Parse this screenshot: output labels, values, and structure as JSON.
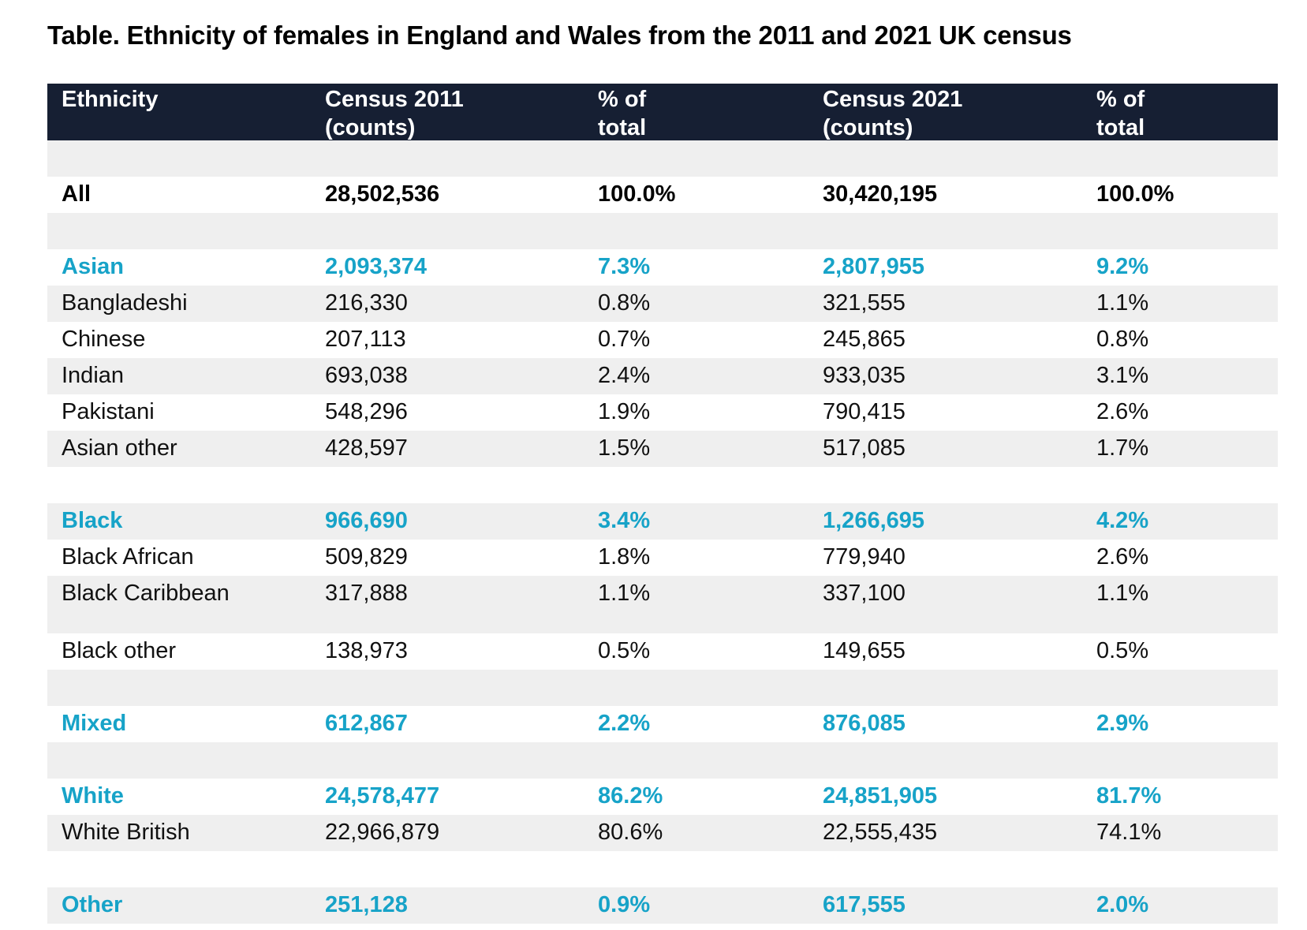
{
  "title": "Table. Ethnicity of females in England and Wales from the 2011 and 2021 UK census",
  "colors": {
    "header_bg": "#161f33",
    "accent": "#17a3c8",
    "stripe": "#efefef"
  },
  "columns": [
    {
      "line1": "Ethnicity",
      "line2": ""
    },
    {
      "line1": "Census 2011",
      "line2": "(counts)"
    },
    {
      "line1": "% of",
      "line2": "total"
    },
    {
      "line1": "Census 2021",
      "line2": "(counts)"
    },
    {
      "line1": "% of",
      "line2": "total"
    }
  ],
  "rows": [
    {
      "type": "spacer"
    },
    {
      "type": "total",
      "cells": [
        "All",
        "28,502,536",
        "100.0%",
        "30,420,195",
        "100.0%"
      ]
    },
    {
      "type": "spacer"
    },
    {
      "type": "group",
      "cells": [
        "Asian",
        "2,093,374",
        "7.3%",
        "2,807,955",
        "9.2%"
      ]
    },
    {
      "type": "sub",
      "cells": [
        "Bangladeshi",
        "216,330",
        "0.8%",
        "321,555",
        "1.1%"
      ]
    },
    {
      "type": "sub",
      "cells": [
        "Chinese",
        "207,113",
        "0.7%",
        "245,865",
        "0.8%"
      ]
    },
    {
      "type": "sub",
      "cells": [
        "Indian",
        "693,038",
        "2.4%",
        "933,035",
        "3.1%"
      ]
    },
    {
      "type": "sub",
      "cells": [
        "Pakistani",
        "548,296",
        "1.9%",
        "790,415",
        "2.6%"
      ]
    },
    {
      "type": "sub",
      "cells": [
        "Asian other",
        "428,597",
        "1.5%",
        "517,085",
        "1.7%"
      ]
    },
    {
      "type": "spacer"
    },
    {
      "type": "group",
      "cells": [
        "Black",
        "966,690",
        "3.4%",
        "1,266,695",
        "4.2%"
      ]
    },
    {
      "type": "sub",
      "cells": [
        "Black African",
        "509,829",
        "1.8%",
        "779,940",
        "2.6%"
      ]
    },
    {
      "type": "sub",
      "tall": true,
      "cells": [
        "Black Caribbean",
        "317,888",
        "1.1%",
        "337,100",
        "1.1%"
      ]
    },
    {
      "type": "sub",
      "cells": [
        "Black other",
        "138,973",
        "0.5%",
        "149,655",
        "0.5%"
      ]
    },
    {
      "type": "spacer"
    },
    {
      "type": "group",
      "cells": [
        "Mixed",
        "612,867",
        "2.2%",
        "876,085",
        "2.9%"
      ]
    },
    {
      "type": "spacer"
    },
    {
      "type": "group",
      "cells": [
        "White",
        "24,578,477",
        "86.2%",
        "24,851,905",
        "81.7%"
      ]
    },
    {
      "type": "sub",
      "cells": [
        "White British",
        "22,966,879",
        "80.6%",
        "22,555,435",
        "74.1%"
      ]
    },
    {
      "type": "spacer"
    },
    {
      "type": "group",
      "cells": [
        "Other",
        "251,128",
        "0.9%",
        "617,555",
        "2.0%"
      ]
    }
  ]
}
